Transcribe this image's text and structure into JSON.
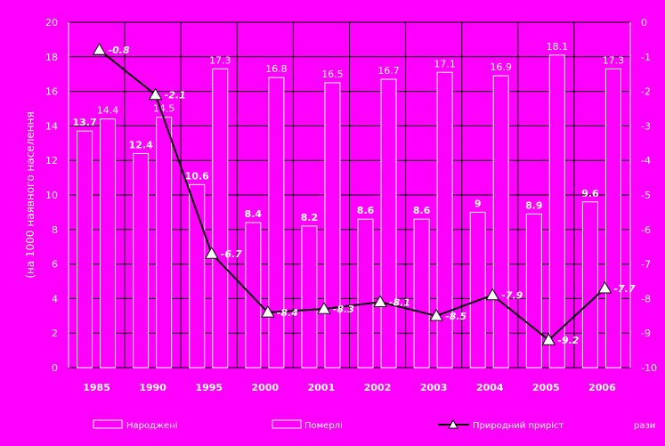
{
  "colors": {
    "background": "#ff00ff",
    "bars_births_fill": "#ff00ff",
    "bars_deaths_fill": "#ff00ff",
    "bar_stroke": "#ffffff",
    "line": "#000000",
    "marker_fill": "#ffffff",
    "text": "#ffffff"
  },
  "chart_data": {
    "type": "bar+line",
    "title": "",
    "xlabel": "",
    "ylabel_left": "(на 1000 наявного населення",
    "ylabel_right": "",
    "ylim_left": [
      0,
      20
    ],
    "ylim_right": [
      -10,
      0
    ],
    "left_ticks": [
      "0",
      "2",
      "4",
      "6",
      "8",
      "10",
      "12",
      "14",
      "16",
      "18",
      "20"
    ],
    "right_ticks": [
      "-10",
      "-9",
      "-8",
      "-7",
      "-6",
      "-5",
      "-4",
      "-3",
      "-2",
      "-1",
      "0"
    ],
    "grid": "horizontal and vertical",
    "categories": [
      "1985",
      "1990",
      "1995",
      "2000",
      "2001",
      "2002",
      "2003",
      "2004",
      "2005",
      "2006"
    ],
    "series": [
      {
        "name": "Народжені",
        "kind": "bar",
        "axis": "left",
        "values": [
          13.7,
          12.4,
          10.6,
          8.4,
          8.2,
          8.6,
          8.6,
          9.0,
          8.9,
          9.6
        ],
        "labels": [
          "13.7",
          "12.4",
          "10.6",
          "8.4",
          "8.2",
          "8.6",
          "8.6",
          "9",
          "8.9",
          "9.6"
        ]
      },
      {
        "name": "Померлі",
        "kind": "bar",
        "axis": "left",
        "values": [
          14.4,
          14.5,
          17.3,
          16.8,
          16.5,
          16.7,
          17.1,
          16.9,
          18.1,
          17.3
        ],
        "labels": [
          "14.4",
          "14.5",
          "17.3",
          "16.8",
          "16.5",
          "16.7",
          "17.1",
          "16.9",
          "18.1",
          "17.3"
        ]
      },
      {
        "name": "Природний приріст",
        "kind": "line",
        "axis": "right",
        "values": [
          -0.8,
          -2.1,
          -6.7,
          -8.4,
          -8.3,
          -8.1,
          -8.5,
          -7.9,
          -9.2,
          -7.7
        ],
        "labels": [
          "-0.8",
          "-2.1",
          "-6.7",
          "-8.4",
          "-8.3",
          "-8.1",
          "-8.5",
          "-7.9",
          "-9.2",
          "-7.7"
        ]
      }
    ],
    "legend": {
      "placement": "bottom",
      "items": [
        "Народжені",
        "Померлі",
        "Природний приріст"
      ],
      "trailing": "рази"
    }
  }
}
